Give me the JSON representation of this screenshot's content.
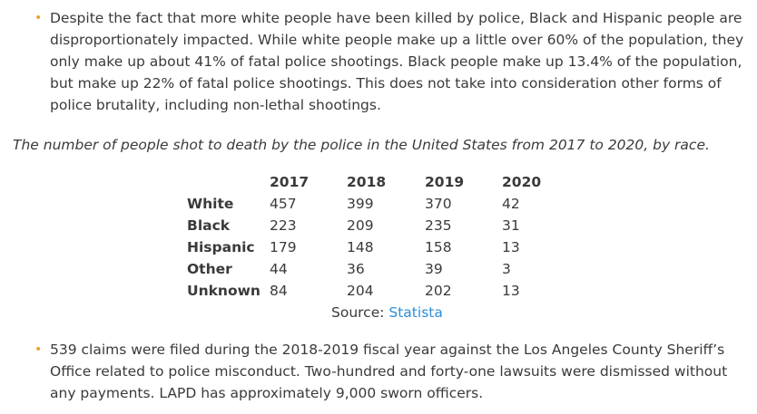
{
  "bullets": [
    "Despite the fact that more white people have been killed by police, Black and Hispanic people are disproportionately impacted.  While white people make up a little over 60% of the population, they only make up about 41% of fatal police shootings.  Black people make up 13.4% of the population, but make up 22% of fatal police shootings.  This does not take into consideration other forms of police brutality, including non-lethal shootings.",
    "539 claims were filed during the 2018-2019 fiscal year against the Los Angeles County Sheriff’s Office related to police misconduct. Two-hundred and forty-one lawsuits were dismissed without any payments. LAPD has approximately 9,000 sworn officers."
  ],
  "bullet_glyph": "•",
  "bullet_color": "#f0a030",
  "caption": "The number of people shot to death by the police in the United States from 2017 to 2020, by race.",
  "table": {
    "headers": [
      "",
      "2017",
      "2018",
      "2019",
      "2020"
    ],
    "rows": [
      {
        "label": "White",
        "values": [
          "457",
          "399",
          "370",
          "42"
        ]
      },
      {
        "label": "Black",
        "values": [
          "223",
          "209",
          "235",
          "31"
        ]
      },
      {
        "label": "Hispanic",
        "values": [
          "179",
          "148",
          "158",
          "13"
        ]
      },
      {
        "label": "Other",
        "values": [
          "44",
          "36",
          "39",
          "3"
        ]
      },
      {
        "label": "Unknown",
        "values": [
          "84",
          "204",
          "202",
          "13"
        ]
      }
    ]
  },
  "source": {
    "prefix": "Source: ",
    "link_text": "Statista",
    "link_color": "#2b8fd6"
  }
}
